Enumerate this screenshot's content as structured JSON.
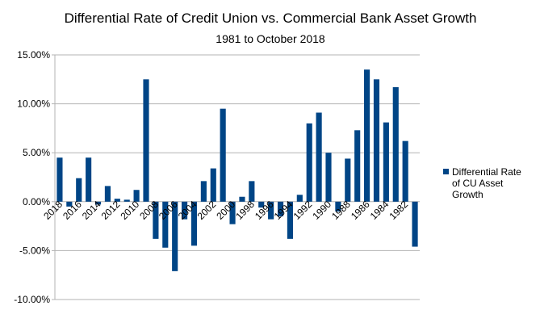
{
  "chart_data": {
    "type": "bar",
    "title": "Differential Rate of Credit Union vs. Commercial Bank Asset Growth",
    "subtitle": "1981 to October 2018",
    "categories": [
      "2018",
      null,
      "2016",
      null,
      "2014",
      null,
      "2012",
      null,
      "2010",
      null,
      "2008",
      null,
      "2006",
      null,
      "2004",
      null,
      "2002",
      null,
      "2000",
      null,
      "1998",
      null,
      "1996",
      null,
      "1994",
      null,
      "1992",
      null,
      "1990",
      null,
      "1988",
      null,
      "1986",
      null,
      "1984",
      null,
      "1982",
      null
    ],
    "series": [
      {
        "name": "Differential Rate of CU Asset Growth",
        "color": "#004586",
        "values": [
          4.5,
          -0.5,
          2.4,
          4.5,
          -0.3,
          1.6,
          0.3,
          0.2,
          1.2,
          12.5,
          -3.8,
          -4.7,
          -7.1,
          -1.8,
          -4.5,
          2.1,
          3.4,
          9.5,
          -2.3,
          0.5,
          2.1,
          -0.6,
          -1.8,
          -1.5,
          -3.8,
          0.7,
          8.0,
          9.1,
          5.0,
          -1.0,
          4.4,
          7.3,
          13.5,
          12.5,
          8.1,
          11.7,
          6.2,
          -4.6
        ]
      }
    ],
    "ylim": [
      -10,
      15
    ],
    "yticks": [
      {
        "value": -10,
        "label": "-10.00%"
      },
      {
        "value": -5,
        "label": "-5.00%"
      },
      {
        "value": 0,
        "label": "0.00%"
      },
      {
        "value": 5,
        "label": "5.00%"
      },
      {
        "value": 10,
        "label": "10.00%"
      },
      {
        "value": 15,
        "label": "15.00%"
      }
    ],
    "grid": true,
    "legend": "right"
  }
}
